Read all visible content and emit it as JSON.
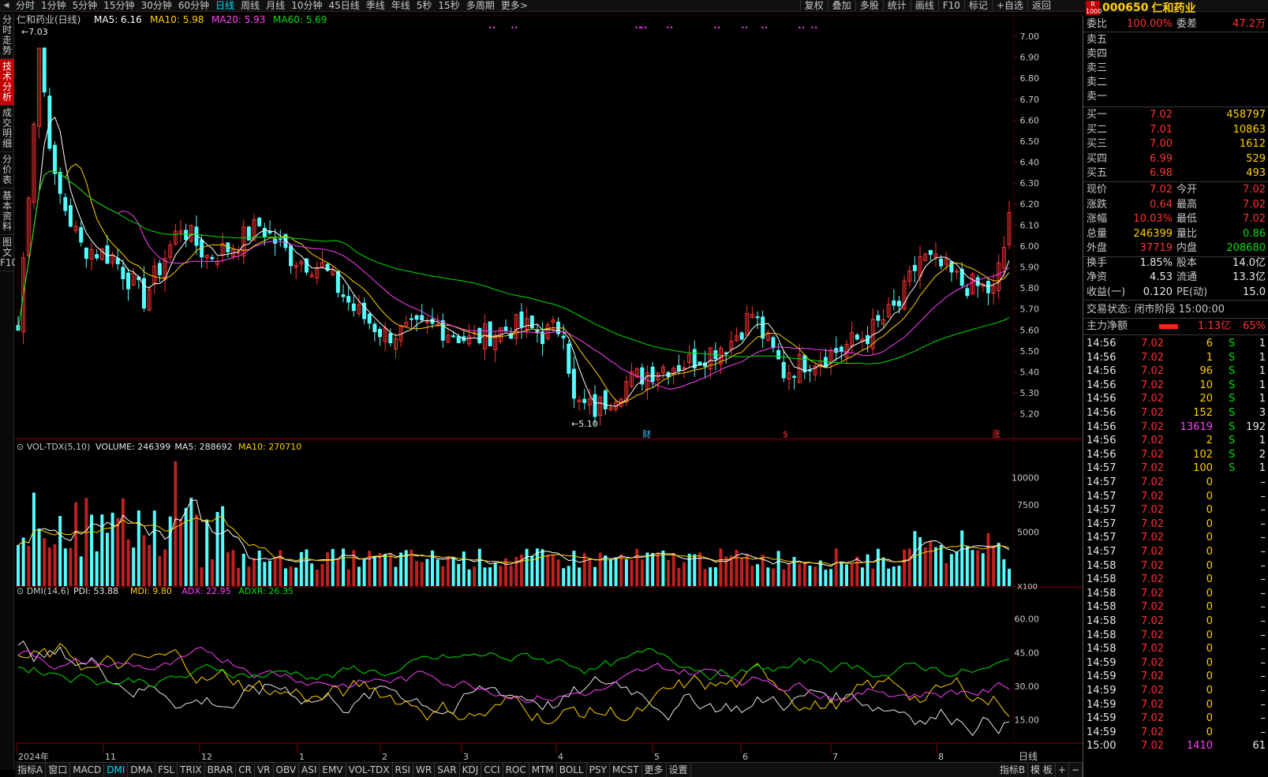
{
  "toolbar": {
    "periods": [
      "分时",
      "1分钟",
      "5分钟",
      "15分钟",
      "30分钟",
      "60分钟",
      "日线",
      "周线",
      "月线",
      "10分钟",
      "45日线",
      "季线",
      "年线",
      "5秒",
      "15秒",
      "多周期",
      "更多>"
    ],
    "active_period": "日线",
    "tools": [
      "复权",
      "叠加",
      "多股",
      "统计",
      "画线",
      "F10",
      "标记",
      "+自选",
      "返回"
    ]
  },
  "stock": {
    "code": "000650",
    "name": "仁和药业",
    "badge": "R\n1000"
  },
  "side_tabs": [
    "分时走势",
    "技术分析",
    "成交明细",
    "分价表",
    "基本资料",
    "图文F10"
  ],
  "active_side_tab": "技术分析",
  "bottom_tabs": [
    "指标A",
    "窗口",
    "MACD",
    "DMI",
    "DMA",
    "FSL",
    "TRIX",
    "BRAR",
    "CR",
    "VR",
    "OBV",
    "ASI",
    "EMV",
    "VOL-TDX",
    "RSI",
    "WR",
    "SAR",
    "KDJ",
    "CCI",
    "ROC",
    "MTM",
    "BOLL",
    "PSY",
    "MCST",
    "更多",
    "设置"
  ],
  "active_bottom_tab": "DMI",
  "bottom_right": [
    "指标B",
    "模 板",
    "+",
    "−"
  ],
  "chart_data": {
    "type": "candlestick",
    "main": {
      "title": "仁和药业(日线)",
      "indicators": [
        {
          "name": "MA5",
          "value": "6.16",
          "color": "#ffffff"
        },
        {
          "name": "MA10",
          "value": "5.98",
          "color": "#ffd000"
        },
        {
          "name": "MA20",
          "value": "5.93",
          "color": "#ff40ff"
        },
        {
          "name": "MA60",
          "value": "5.69",
          "color": "#00e000"
        }
      ],
      "y_ticks": [
        "7.00",
        "6.90",
        "6.80",
        "6.70",
        "6.60",
        "6.50",
        "6.40",
        "6.30",
        "6.20",
        "6.10",
        "6.00",
        "5.90",
        "5.80",
        "5.70",
        "5.60",
        "5.50",
        "5.40",
        "5.30",
        "5.20"
      ],
      "ylim": [
        5.12,
        7.06
      ],
      "high_label": "7.03",
      "low_label": "5.10",
      "event_markers": [
        "财",
        "$",
        "涨"
      ],
      "period_label": "日线"
    },
    "volume": {
      "title": "VOL-TDX(5,10)",
      "indicators": [
        {
          "name": "VOLUME",
          "value": "246399",
          "color": "#e8e8e8"
        },
        {
          "name": "MA5",
          "value": "288692",
          "color": "#e8e8e8"
        },
        {
          "name": "MA10",
          "value": "270710",
          "color": "#ffd000"
        }
      ],
      "y_ticks": [
        "10000",
        "7500",
        "5000"
      ],
      "unit": "X100"
    },
    "dmi": {
      "title": "DMI(14,6)",
      "indicators": [
        {
          "name": "PDI",
          "value": "53.88",
          "color": "#e8e8e8"
        },
        {
          "name": "MDI",
          "value": "9.80",
          "color": "#ffd000"
        },
        {
          "name": "ADX",
          "value": "22.95",
          "color": "#ff40ff"
        },
        {
          "name": "ADXR",
          "value": "26.35",
          "color": "#00e000"
        }
      ],
      "y_ticks": [
        "60.00",
        "45.00",
        "30.00",
        "15.00"
      ]
    },
    "x_labels": [
      "2024年",
      "11",
      "12",
      "1",
      "2",
      "3",
      "4",
      "5",
      "6",
      "7",
      "8"
    ]
  },
  "quote": {
    "weibi": {
      "label": "委比",
      "value": "100.00%",
      "label2": "委差",
      "value2": "47.2万"
    },
    "sell": [
      {
        "label": "卖五"
      },
      {
        "label": "卖四"
      },
      {
        "label": "卖三"
      },
      {
        "label": "卖二"
      },
      {
        "label": "卖一"
      }
    ],
    "buy": [
      {
        "label": "买一",
        "price": "7.02",
        "vol": "458797"
      },
      {
        "label": "买二",
        "price": "7.01",
        "vol": "10863"
      },
      {
        "label": "买三",
        "price": "7.00",
        "vol": "1612"
      },
      {
        "label": "买四",
        "price": "6.99",
        "vol": "529"
      },
      {
        "label": "买五",
        "price": "6.98",
        "vol": "493"
      }
    ],
    "stats": [
      {
        "l": "现价",
        "v": "7.02",
        "vc": "red",
        "l2": "今开",
        "v2": "7.02",
        "v2c": "red"
      },
      {
        "l": "涨跌",
        "v": "0.64",
        "vc": "red",
        "l2": "最高",
        "v2": "7.02",
        "v2c": "red"
      },
      {
        "l": "涨幅",
        "v": "10.03%",
        "vc": "red",
        "l2": "最低",
        "v2": "7.02",
        "v2c": "red"
      },
      {
        "l": "总量",
        "v": "246399",
        "vc": "yel",
        "l2": "量比",
        "v2": "0.86",
        "v2c": "grn"
      },
      {
        "l": "外盘",
        "v": "37719",
        "vc": "red",
        "l2": "内盘",
        "v2": "208680",
        "v2c": "grn"
      },
      {
        "l": "换手",
        "v": "1.85%",
        "vc": "wht",
        "l2": "股本",
        "v2": "14.0亿",
        "v2c": "wht"
      },
      {
        "l": "净资",
        "v": "4.53",
        "vc": "wht",
        "l2": "流通",
        "v2": "13.3亿",
        "v2c": "wht"
      },
      {
        "l": "收益(一)",
        "v": "0.120",
        "vc": "wht",
        "l2": "PE(动)",
        "v2": "15.0",
        "v2c": "wht"
      }
    ],
    "trade_status": "交易状态: 闭市阶段 15:00:00",
    "main_flow": {
      "label": "主力净额",
      "value": "1.13亿",
      "pct": "65%"
    },
    "ticks": [
      {
        "t": "14:56",
        "p": "7.02",
        "v": "6",
        "bs": "S",
        "n": "1"
      },
      {
        "t": "14:56",
        "p": "7.02",
        "v": "1",
        "bs": "S",
        "n": "1"
      },
      {
        "t": "14:56",
        "p": "7.02",
        "v": "96",
        "bs": "S",
        "n": "1"
      },
      {
        "t": "14:56",
        "p": "7.02",
        "v": "10",
        "bs": "S",
        "n": "1"
      },
      {
        "t": "14:56",
        "p": "7.02",
        "v": "20",
        "bs": "S",
        "n": "1"
      },
      {
        "t": "14:56",
        "p": "7.02",
        "v": "152",
        "bs": "S",
        "n": "3"
      },
      {
        "t": "14:56",
        "p": "7.02",
        "v": "13619",
        "bs": "S",
        "n": "192"
      },
      {
        "t": "14:56",
        "p": "7.02",
        "v": "2",
        "bs": "S",
        "n": "1"
      },
      {
        "t": "14:56",
        "p": "7.02",
        "v": "102",
        "bs": "S",
        "n": "2"
      },
      {
        "t": "14:57",
        "p": "7.02",
        "v": "100",
        "bs": "S",
        "n": "1"
      },
      {
        "t": "14:57",
        "p": "7.02",
        "v": "0",
        "bs": "",
        "n": "–"
      },
      {
        "t": "14:57",
        "p": "7.02",
        "v": "0",
        "bs": "",
        "n": "–"
      },
      {
        "t": "14:57",
        "p": "7.02",
        "v": "0",
        "bs": "",
        "n": "–"
      },
      {
        "t": "14:57",
        "p": "7.02",
        "v": "0",
        "bs": "",
        "n": "–"
      },
      {
        "t": "14:57",
        "p": "7.02",
        "v": "0",
        "bs": "",
        "n": "–"
      },
      {
        "t": "14:57",
        "p": "7.02",
        "v": "0",
        "bs": "",
        "n": "–"
      },
      {
        "t": "14:58",
        "p": "7.02",
        "v": "0",
        "bs": "",
        "n": "–"
      },
      {
        "t": "14:58",
        "p": "7.02",
        "v": "0",
        "bs": "",
        "n": "–"
      },
      {
        "t": "14:58",
        "p": "7.02",
        "v": "0",
        "bs": "",
        "n": "–"
      },
      {
        "t": "14:58",
        "p": "7.02",
        "v": "0",
        "bs": "",
        "n": "–"
      },
      {
        "t": "14:58",
        "p": "7.02",
        "v": "0",
        "bs": "",
        "n": "–"
      },
      {
        "t": "14:58",
        "p": "7.02",
        "v": "0",
        "bs": "",
        "n": "–"
      },
      {
        "t": "14:58",
        "p": "7.02",
        "v": "0",
        "bs": "",
        "n": "–"
      },
      {
        "t": "14:59",
        "p": "7.02",
        "v": "0",
        "bs": "",
        "n": "–"
      },
      {
        "t": "14:59",
        "p": "7.02",
        "v": "0",
        "bs": "",
        "n": "–"
      },
      {
        "t": "14:59",
        "p": "7.02",
        "v": "0",
        "bs": "",
        "n": "–"
      },
      {
        "t": "14:59",
        "p": "7.02",
        "v": "0",
        "bs": "",
        "n": "–"
      },
      {
        "t": "14:59",
        "p": "7.02",
        "v": "0",
        "bs": "",
        "n": "–"
      },
      {
        "t": "14:59",
        "p": "7.02",
        "v": "0",
        "bs": "",
        "n": "–"
      },
      {
        "t": "15:00",
        "p": "7.02",
        "v": "1410",
        "bs": "",
        "n": "61"
      }
    ]
  }
}
